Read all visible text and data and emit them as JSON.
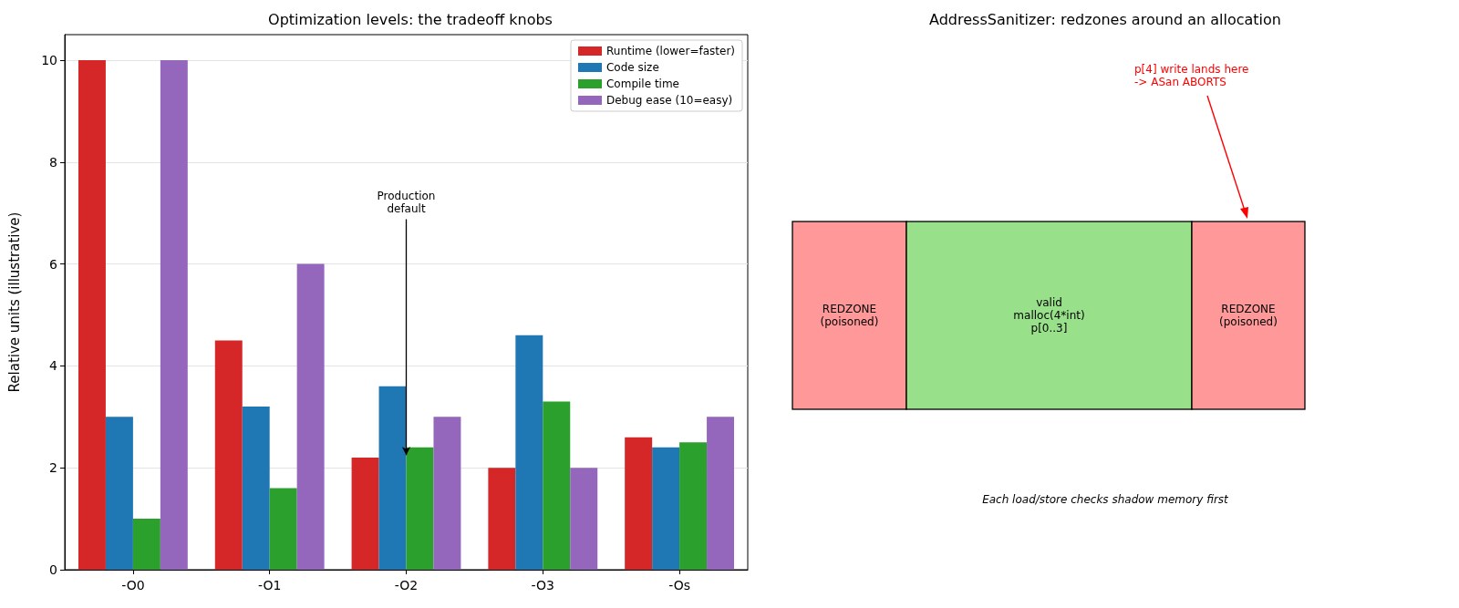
{
  "chart_data": [
    {
      "type": "bar",
      "title": "Optimization levels: the tradeoff knobs",
      "ylabel": "Relative units (illustrative)",
      "categories": [
        "-O0",
        "-O1",
        "-O2",
        "-O3",
        "-Os"
      ],
      "series": [
        {
          "name": "Runtime (lower=faster)",
          "color": "#d62728",
          "values": [
            10,
            4.5,
            2.2,
            2,
            2.6
          ]
        },
        {
          "name": "Code size",
          "color": "#1f77b4",
          "values": [
            3,
            3.2,
            3.6,
            4.6,
            2.4
          ]
        },
        {
          "name": "Compile time",
          "color": "#2ca02c",
          "values": [
            1,
            1.6,
            2.4,
            3.3,
            2.5
          ]
        },
        {
          "name": "Debug ease (10=easy)",
          "color": "#9467bd",
          "values": [
            10,
            6,
            3,
            2,
            3
          ]
        }
      ],
      "ylim": [
        0,
        10.5
      ],
      "yticks": [
        0,
        2,
        4,
        6,
        8,
        10
      ],
      "grid": "y",
      "legend": "top right",
      "annotations": [
        {
          "text": "Production\ndefault",
          "x": "-O2",
          "y": 2.25
        }
      ]
    },
    {
      "type": "other",
      "title": "AddressSanitizer: redzones around an allocation",
      "annotations": [
        "REDZONE\n(poisoned)",
        "valid\nmalloc(4*int)\np[0..3]",
        "REDZONE\n(poisoned)",
        "p[4] write lands here\n-> ASan ABORTS",
        "Each load/store checks shadow memory first"
      ]
    }
  ]
}
